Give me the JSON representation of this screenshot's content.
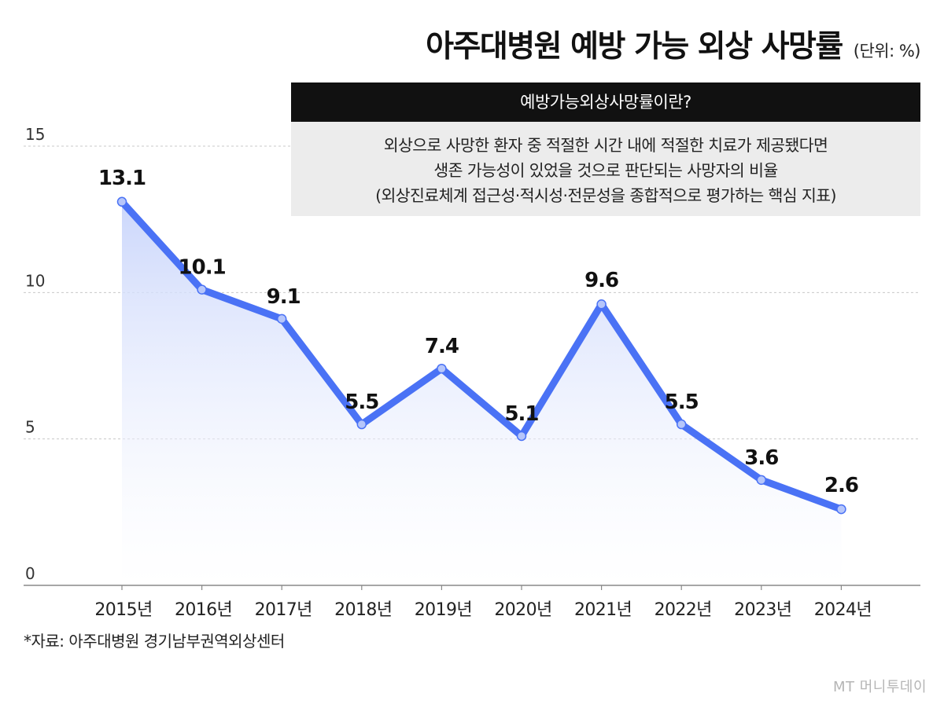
{
  "header": {
    "title": "아주대병원 예방 가능 외상 사망률",
    "unit": "(단위: %)"
  },
  "info_box": {
    "heading": "예방가능외상사망률이란?",
    "lines": [
      "외상으로 사망한 환자 중 적절한 시간 내에 적절한 치료가 제공됐다면",
      "생존 가능성이 있었을 것으로 판단되는 사망자의 비율",
      "(외상진료체계 접근성·적시성·전문성을 종합적으로 평가하는 핵심 지표)"
    ]
  },
  "source": "*자료: 아주대병원 경기남부권역외상센터",
  "logo": "MT 머니투데이",
  "colors": {
    "line": "#4a72f5",
    "marker_fill": "#b6c6fa",
    "area_top": "#c9d5fb",
    "highlight": "#ee3b1c"
  },
  "chart_data": {
    "type": "line",
    "title": "아주대병원 예방 가능 외상 사망률",
    "unit": "%",
    "x": [
      "2015년",
      "2016년",
      "2017년",
      "2018년",
      "2019년",
      "2020년",
      "2021년",
      "2022년",
      "2023년",
      "2024년"
    ],
    "series": [
      {
        "values": [
          13.1,
          10.1,
          9.1,
          5.5,
          7.4,
          5.1,
          9.6,
          5.5,
          3.6,
          2.6
        ]
      }
    ],
    "data_labels": [
      "13.1",
      "10.1",
      "9.1",
      "5.5",
      "7.4",
      "5.1",
      "9.6",
      "5.5",
      "3.6",
      "2.6"
    ],
    "highlight_index": 9,
    "ylim": [
      0,
      15
    ],
    "yticks": [
      0,
      5,
      10,
      15
    ],
    "grid": "horizontal dashed",
    "legend": "none"
  }
}
